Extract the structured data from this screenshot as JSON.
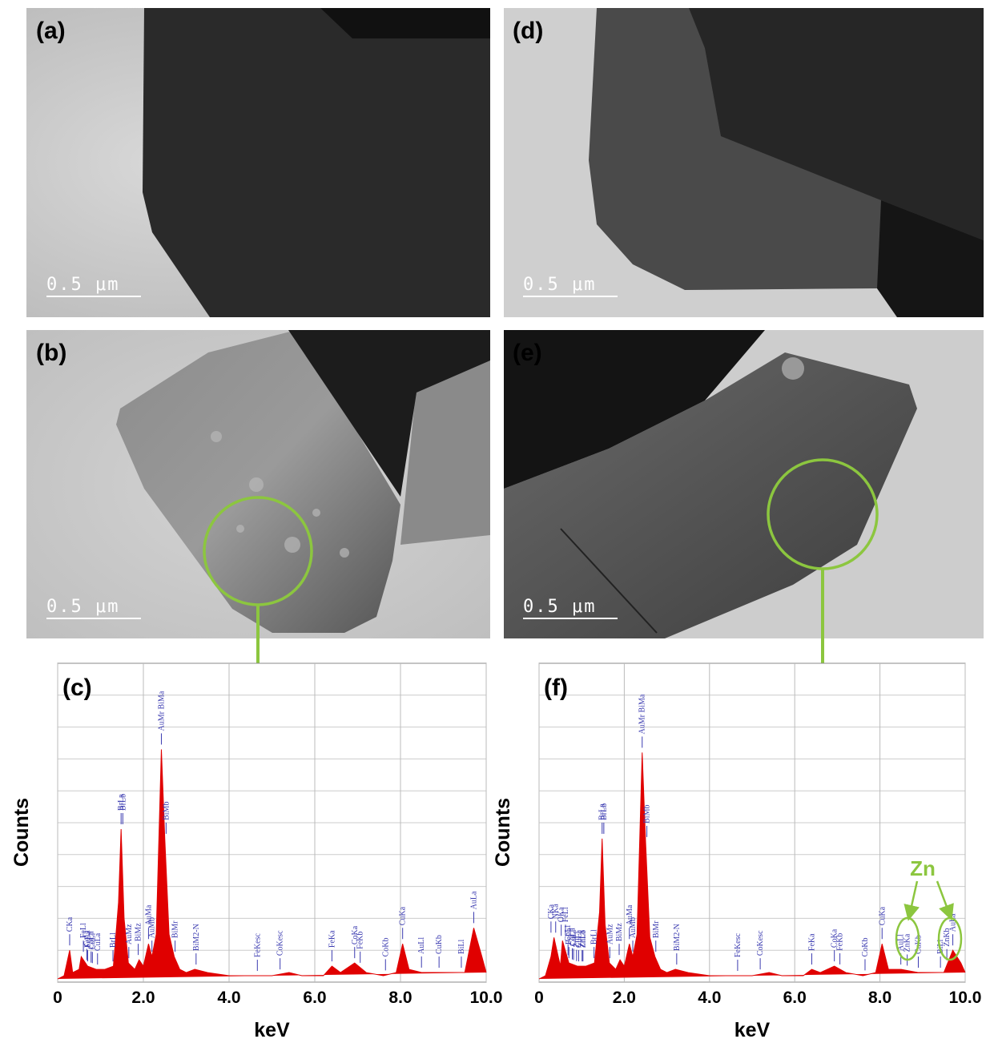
{
  "panels": [
    {
      "label": "(a)",
      "scale_bar": "0.5 μm"
    },
    {
      "label": "(d)",
      "scale_bar": "0.5 μm"
    },
    {
      "label": "(b)",
      "scale_bar": "0.5 μm"
    },
    {
      "label": "(e)",
      "scale_bar": "0.5 μm"
    }
  ],
  "chart_data": [
    {
      "type": "area",
      "panel_label": "(c)",
      "xlabel": "keV",
      "ylabel": "Counts",
      "xlim": [
        0,
        10
      ],
      "ylim": [
        0,
        100
      ],
      "grid": true,
      "xticks": [
        0,
        {
          "value": 2,
          "label": "2.0"
        },
        {
          "value": 4,
          "label": "4.0"
        },
        {
          "value": 6,
          "label": "6.0"
        },
        {
          "value": 8,
          "label": "8.0"
        },
        {
          "value": 10,
          "label": "10.0"
        }
      ],
      "x": [
        0,
        0.15,
        0.28,
        0.35,
        0.5,
        0.55,
        0.7,
        0.9,
        1.1,
        1.3,
        1.42,
        1.48,
        1.55,
        1.65,
        1.8,
        1.9,
        2.0,
        2.12,
        2.2,
        2.3,
        2.42,
        2.5,
        2.6,
        2.72,
        2.85,
        3.0,
        3.2,
        3.5,
        4.0,
        4.5,
        5.0,
        5.4,
        5.7,
        6.2,
        6.4,
        6.6,
        6.93,
        7.2,
        7.6,
        7.9,
        8.05,
        8.2,
        8.5,
        8.9,
        9.2,
        9.5,
        9.71,
        9.9,
        10.0
      ],
      "series": [
        {
          "color": "#e00000",
          "values": [
            1,
            2,
            10,
            3,
            4,
            8,
            5,
            4,
            4,
            5,
            25,
            48,
            20,
            6,
            4,
            7,
            5,
            12,
            8,
            15,
            73,
            45,
            15,
            8,
            4,
            3,
            4,
            3,
            2,
            2,
            2,
            3,
            2,
            2,
            5,
            3,
            6,
            3,
            2,
            3,
            12,
            4,
            3,
            3,
            3,
            3,
            17,
            8,
            3
          ]
        }
      ],
      "peak_label_color": "#3b3bb0",
      "peak_labels": [
        {
          "label": "CKa",
          "x": 0.28
        },
        {
          "label": "FeLl",
          "x": 0.6
        },
        {
          "label": "FeLa",
          "x": 0.7
        },
        {
          "label": "CoLl",
          "x": 0.68
        },
        {
          "label": "CoLa",
          "x": 0.78
        },
        {
          "label": "CuLl",
          "x": 0.81
        },
        {
          "label": "CuLa",
          "x": 0.93
        },
        {
          "label": "BrLl",
          "x": 1.29
        },
        {
          "label": "BrLa",
          "x": 1.48
        },
        {
          "label": "BrLb",
          "x": 1.52
        },
        {
          "label": "AuMz",
          "x": 1.66
        },
        {
          "label": "BiMz",
          "x": 1.88
        },
        {
          "label": "AuMa",
          "x": 2.12
        },
        {
          "label": "AuMb",
          "x": 2.2
        },
        {
          "label": "AuMr BiMa",
          "x": 2.42
        },
        {
          "label": "BiMb",
          "x": 2.53
        },
        {
          "label": "BiMr",
          "x": 2.74
        },
        {
          "label": "BiM2-N",
          "x": 3.23
        },
        {
          "label": "FeKesc",
          "x": 4.66
        },
        {
          "label": "CoKesc",
          "x": 5.19
        },
        {
          "label": "FeKa",
          "x": 6.4
        },
        {
          "label": "CoKa",
          "x": 6.93
        },
        {
          "label": "FeKb",
          "x": 7.06
        },
        {
          "label": "CoKb",
          "x": 7.65
        },
        {
          "label": "CuKa",
          "x": 8.05
        },
        {
          "label": "AuLl",
          "x": 8.49
        },
        {
          "label": "CuKb",
          "x": 8.9
        },
        {
          "label": "BiLl",
          "x": 9.42
        },
        {
          "label": "AuLa",
          "x": 9.71
        }
      ]
    },
    {
      "type": "area",
      "panel_label": "(f)",
      "xlabel": "keV",
      "ylabel": "Counts",
      "xlim": [
        0,
        10
      ],
      "ylim": [
        0,
        100
      ],
      "grid": true,
      "annotation": "Zn",
      "xticks": [
        0,
        {
          "value": 2,
          "label": "2.0"
        },
        {
          "value": 4,
          "label": "4.0"
        },
        {
          "value": 6,
          "label": "6.0"
        },
        {
          "value": 8,
          "label": "8.0"
        },
        {
          "value": 10,
          "label": "10.0"
        }
      ],
      "x": [
        0,
        0.15,
        0.28,
        0.35,
        0.5,
        0.55,
        0.7,
        0.9,
        1.1,
        1.3,
        1.42,
        1.48,
        1.55,
        1.65,
        1.8,
        1.9,
        2.0,
        2.12,
        2.2,
        2.3,
        2.42,
        2.5,
        2.6,
        2.72,
        2.85,
        3.0,
        3.2,
        3.5,
        4.0,
        4.5,
        5.0,
        5.4,
        5.7,
        6.2,
        6.4,
        6.6,
        6.93,
        7.2,
        7.6,
        7.9,
        8.05,
        8.2,
        8.5,
        8.9,
        9.2,
        9.5,
        9.71,
        9.9,
        10.0
      ],
      "series": [
        {
          "color": "#e00000",
          "values": [
            1,
            2,
            8,
            14,
            5,
            13,
            6,
            5,
            5,
            6,
            22,
            45,
            18,
            6,
            4,
            7,
            5,
            12,
            8,
            15,
            72,
            44,
            14,
            8,
            4,
            3,
            4,
            3,
            2,
            2,
            2,
            3,
            2,
            2,
            4,
            3,
            5,
            3,
            2,
            3,
            12,
            4,
            4,
            3,
            3,
            3,
            10,
            6,
            3
          ]
        }
      ],
      "peak_label_color": "#3b3bb0",
      "peak_labels": [
        {
          "label": "CKa",
          "x": 0.28
        },
        {
          "label": "NKa",
          "x": 0.39
        },
        {
          "label": "OKa",
          "x": 0.52
        },
        {
          "label": "FeLl",
          "x": 0.62
        },
        {
          "label": "CoLl",
          "x": 0.68
        },
        {
          "label": "FeLa",
          "x": 0.7
        },
        {
          "label": "CoLa",
          "x": 0.78
        },
        {
          "label": "CuLl",
          "x": 0.81
        },
        {
          "label": "ZnLl",
          "x": 0.88
        },
        {
          "label": "CuLa",
          "x": 0.93
        },
        {
          "label": "ZnLa",
          "x": 1.01
        },
        {
          "label": "ZnLb",
          "x": 1.03
        },
        {
          "label": "BrLl",
          "x": 1.29
        },
        {
          "label": "BrLa",
          "x": 1.48
        },
        {
          "label": "BrLb",
          "x": 1.52
        },
        {
          "label": "AuMz",
          "x": 1.66
        },
        {
          "label": "BiMz",
          "x": 1.88
        },
        {
          "label": "AuMa",
          "x": 2.12
        },
        {
          "label": "AuMb",
          "x": 2.2
        },
        {
          "label": "AuMr BiMa",
          "x": 2.42
        },
        {
          "label": "BiMb",
          "x": 2.53
        },
        {
          "label": "BiMr",
          "x": 2.74
        },
        {
          "label": "BiM2-N",
          "x": 3.23
        },
        {
          "label": "FeKesc",
          "x": 4.66
        },
        {
          "label": "CoKesc",
          "x": 5.19
        },
        {
          "label": "FeKa",
          "x": 6.4
        },
        {
          "label": "CoKa",
          "x": 6.93
        },
        {
          "label": "FeKb",
          "x": 7.06
        },
        {
          "label": "CoKb",
          "x": 7.65
        },
        {
          "label": "CuKa",
          "x": 8.05
        },
        {
          "label": "AuLl",
          "x": 8.49
        },
        {
          "label": "ZnKa",
          "x": 8.64
        },
        {
          "label": "CuKb",
          "x": 8.9
        },
        {
          "label": "BiLl",
          "x": 9.42
        },
        {
          "label": "ZnKb",
          "x": 9.57
        },
        {
          "label": "AuLa",
          "x": 9.71
        }
      ]
    }
  ]
}
